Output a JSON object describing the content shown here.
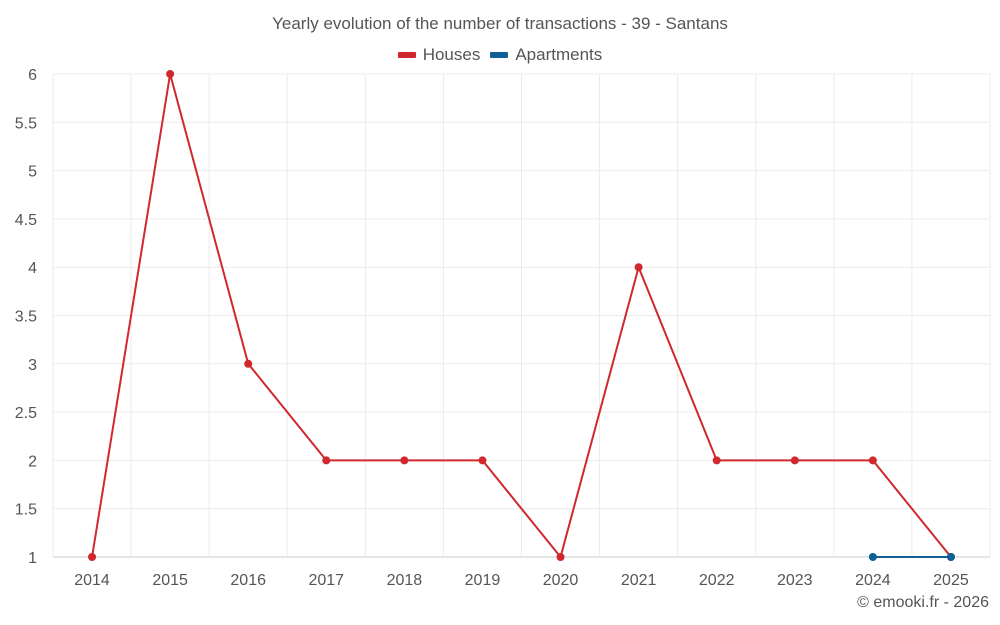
{
  "chart_data": {
    "type": "line",
    "title": "Yearly evolution of the number of transactions - 39 - Santans",
    "categories": [
      "2014",
      "2015",
      "2016",
      "2017",
      "2018",
      "2019",
      "2020",
      "2021",
      "2022",
      "2023",
      "2024",
      "2025"
    ],
    "series": [
      {
        "name": "Houses",
        "color": "#d0282c",
        "values": [
          1,
          6,
          3,
          2,
          2,
          2,
          1,
          4,
          2,
          2,
          2,
          1
        ]
      },
      {
        "name": "Apartments",
        "color": "#0f6096",
        "values": [
          null,
          null,
          null,
          null,
          null,
          null,
          null,
          null,
          null,
          null,
          1,
          1
        ]
      }
    ],
    "ylim": [
      1,
      6
    ],
    "yticks": [
      "1",
      "1.5",
      "2",
      "2.5",
      "3",
      "3.5",
      "4",
      "4.5",
      "5",
      "5.5",
      "6"
    ],
    "grid": true,
    "legend_position": "top-center"
  },
  "footer": {
    "copyright": "© emooki.fr - 2026"
  }
}
